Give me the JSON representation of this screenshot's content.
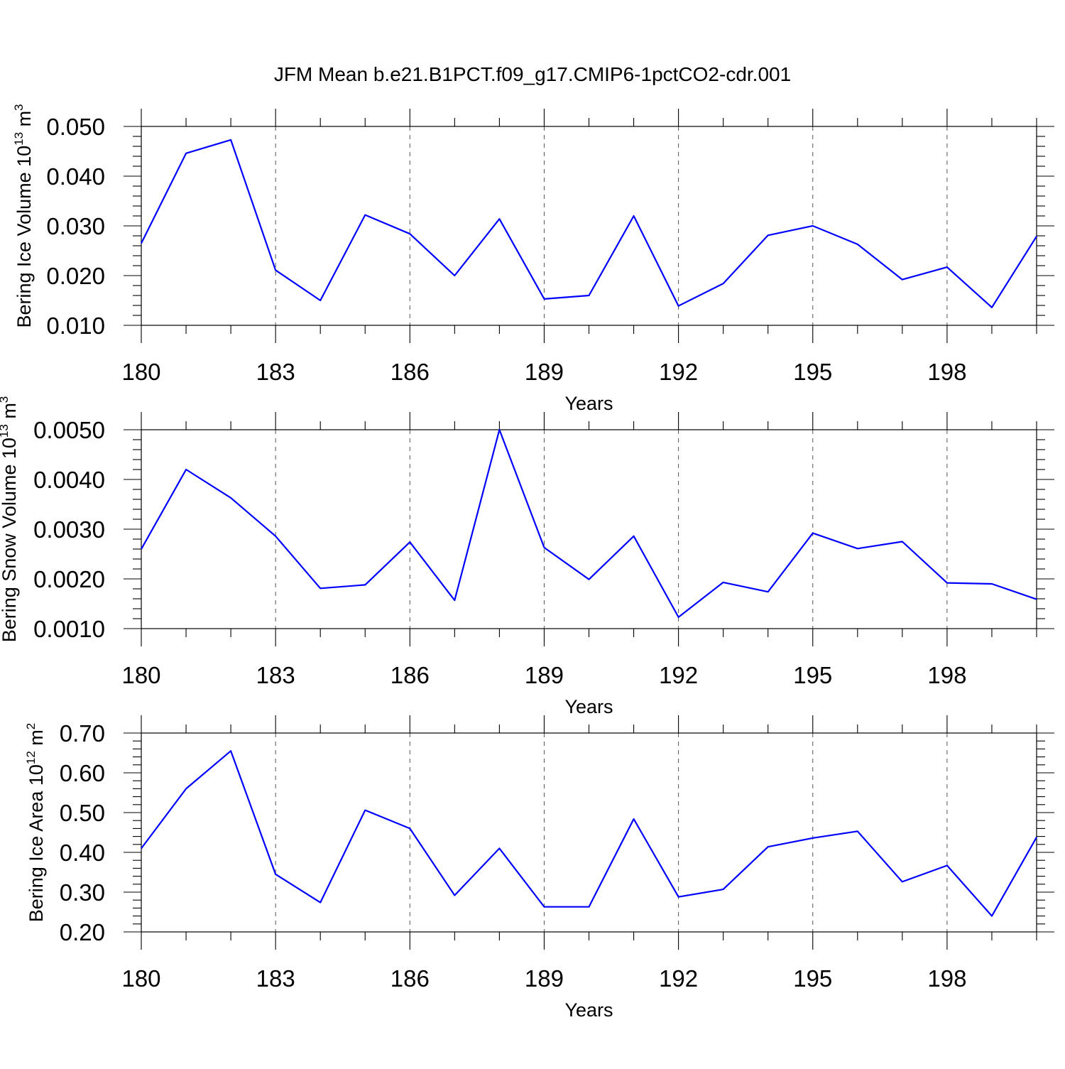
{
  "title": "JFM Mean b.e21.B1PCT.f09_g17.CMIP6-1pctCO2-cdr.001",
  "colors": {
    "line": "#0000ff",
    "axes": "#000000"
  },
  "chart_data": [
    {
      "type": "line",
      "title": "JFM Mean b.e21.B1PCT.f09_g17.CMIP6-1pctCO2-cdr.001",
      "xlabel": "Years",
      "ylabel": "Bering Ice Volume 10",
      "ylabel_sup": "13",
      "ylabel_unit": " m",
      "ylabel_unit_sup": "3",
      "xlim": [
        180,
        200
      ],
      "ylim": [
        0.01,
        0.05
      ],
      "xticks": [
        180,
        183,
        186,
        189,
        192,
        195,
        198
      ],
      "xtick_labels": [
        "180",
        "183",
        "186",
        "189",
        "192",
        "195",
        "198"
      ],
      "yticks": [
        0.01,
        0.02,
        0.03,
        0.04,
        0.05
      ],
      "ytick_labels": [
        "0.010",
        "0.020",
        "0.030",
        "0.040",
        "0.050"
      ],
      "grid": "vertical dashed at major x ticks",
      "x": [
        180,
        181,
        182,
        183,
        184,
        185,
        186,
        187,
        188,
        189,
        190,
        191,
        192,
        193,
        194,
        195,
        196,
        197,
        198,
        199,
        200
      ],
      "series": [
        {
          "values": [
            0.0265,
            0.0446,
            0.0473,
            0.0211,
            0.015,
            0.0322,
            0.0284,
            0.02,
            0.0314,
            0.0153,
            0.016,
            0.032,
            0.0139,
            0.0184,
            0.0281,
            0.03,
            0.0263,
            0.0192,
            0.0217,
            0.0136,
            0.0279
          ]
        }
      ]
    },
    {
      "type": "line",
      "xlabel": "Years",
      "ylabel": "Bering Snow Volume 10",
      "ylabel_sup": "13",
      "ylabel_unit": " m",
      "ylabel_unit_sup": "3",
      "xlim": [
        180,
        200
      ],
      "ylim": [
        0.001,
        0.005
      ],
      "xticks": [
        180,
        183,
        186,
        189,
        192,
        195,
        198
      ],
      "xtick_labels": [
        "180",
        "183",
        "186",
        "189",
        "192",
        "195",
        "198"
      ],
      "yticks": [
        0.001,
        0.002,
        0.003,
        0.004,
        0.005
      ],
      "ytick_labels": [
        "0.0010",
        "0.0020",
        "0.0030",
        "0.0040",
        "0.0050"
      ],
      "grid": "vertical dashed at major x ticks",
      "x": [
        180,
        181,
        182,
        183,
        184,
        185,
        186,
        187,
        188,
        189,
        190,
        191,
        192,
        193,
        194,
        195,
        196,
        197,
        198,
        199,
        200
      ],
      "series": [
        {
          "values": [
            0.0026,
            0.0042,
            0.00363,
            0.00286,
            0.00181,
            0.00188,
            0.00274,
            0.00157,
            0.005,
            0.00263,
            0.00199,
            0.00286,
            0.00123,
            0.00193,
            0.00174,
            0.00292,
            0.00261,
            0.00275,
            0.00192,
            0.0019,
            0.00159
          ]
        }
      ]
    },
    {
      "type": "line",
      "xlabel": "Years",
      "ylabel": "Bering Ice Area 10",
      "ylabel_sup": "12",
      "ylabel_unit": " m",
      "ylabel_unit_sup": "2",
      "xlim": [
        180,
        200
      ],
      "ylim": [
        0.2,
        0.7
      ],
      "xticks": [
        180,
        183,
        186,
        189,
        192,
        195,
        198
      ],
      "xtick_labels": [
        "180",
        "183",
        "186",
        "189",
        "192",
        "195",
        "198"
      ],
      "yticks": [
        0.2,
        0.3,
        0.4,
        0.5,
        0.6,
        0.7
      ],
      "ytick_labels": [
        "0.20",
        "0.30",
        "0.40",
        "0.50",
        "0.60",
        "0.70"
      ],
      "grid": "vertical dashed at major x ticks",
      "x": [
        180,
        181,
        182,
        183,
        184,
        185,
        186,
        187,
        188,
        189,
        190,
        191,
        192,
        193,
        194,
        195,
        196,
        197,
        198,
        199,
        200
      ],
      "series": [
        {
          "values": [
            0.41,
            0.56,
            0.655,
            0.345,
            0.274,
            0.506,
            0.46,
            0.292,
            0.41,
            0.263,
            0.263,
            0.484,
            0.288,
            0.307,
            0.414,
            0.436,
            0.453,
            0.326,
            0.367,
            0.24,
            0.438
          ]
        }
      ]
    }
  ]
}
